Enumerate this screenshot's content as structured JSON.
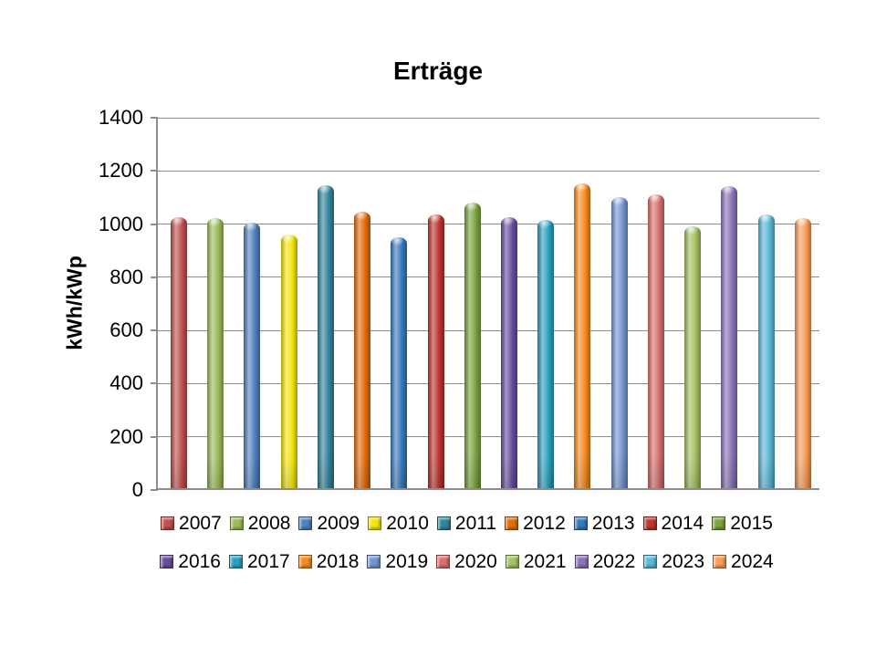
{
  "chart_data": {
    "type": "bar",
    "title": "Erträge",
    "xlabel": "",
    "ylabel": "kWh/kWp",
    "ylim": [
      0,
      1400
    ],
    "ytick_step": 200,
    "yticks": [
      1400,
      1200,
      1000,
      800,
      600,
      400,
      200,
      0
    ],
    "grid": true,
    "legend_position": "bottom",
    "legend_rows": 2,
    "categories": [
      "2007",
      "2008",
      "2009",
      "2010",
      "2011",
      "2012",
      "2013",
      "2014",
      "2015",
      "2016",
      "2017",
      "2018",
      "2019",
      "2020",
      "2021",
      "2022",
      "2023",
      "2024"
    ],
    "series": [
      {
        "name": "2007",
        "value": 1020,
        "color": "#C0504D"
      },
      {
        "name": "2008",
        "value": 1015,
        "color": "#9BBB59"
      },
      {
        "name": "2009",
        "value": 1000,
        "color": "#4F81BD"
      },
      {
        "name": "2010",
        "value": 955,
        "color": "#F3E50E"
      },
      {
        "name": "2011",
        "value": 1140,
        "color": "#31859B"
      },
      {
        "name": "2012",
        "value": 1040,
        "color": "#E36C0A"
      },
      {
        "name": "2013",
        "value": 945,
        "color": "#3779BD"
      },
      {
        "name": "2014",
        "value": 1030,
        "color": "#BE342F"
      },
      {
        "name": "2015",
        "value": 1075,
        "color": "#7BA33F"
      },
      {
        "name": "2016",
        "value": 1020,
        "color": "#684E9E"
      },
      {
        "name": "2017",
        "value": 1010,
        "color": "#2AA1C0"
      },
      {
        "name": "2018",
        "value": 1145,
        "color": "#F68C1F"
      },
      {
        "name": "2019",
        "value": 1095,
        "color": "#7495D1"
      },
      {
        "name": "2020",
        "value": 1105,
        "color": "#D8706D"
      },
      {
        "name": "2021",
        "value": 985,
        "color": "#A3C162"
      },
      {
        "name": "2022",
        "value": 1135,
        "color": "#8B74B8"
      },
      {
        "name": "2023",
        "value": 1030,
        "color": "#5CB9D7"
      },
      {
        "name": "2024",
        "value": 1015,
        "color": "#F99C58"
      }
    ]
  },
  "styles": {
    "background": "#FFFFFF",
    "grid_color": "#8C8C8C",
    "axis_color": "#8C8C8C",
    "text_color": "#000000"
  }
}
